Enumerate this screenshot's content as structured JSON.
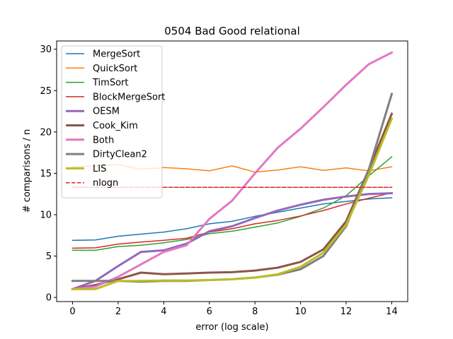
{
  "chart_data": {
    "type": "line",
    "title": "0504 Bad Good relational",
    "xlabel": "error (log scale)",
    "ylabel": "# comparisons / n",
    "xlim": [
      -0.7,
      14.7
    ],
    "ylim": [
      -0.5,
      31.0
    ],
    "xticks": [
      0,
      2,
      4,
      6,
      8,
      10,
      12,
      14
    ],
    "yticks": [
      0,
      5,
      10,
      15,
      20,
      25,
      30
    ],
    "grid": false,
    "legend_position": "top-left",
    "x": [
      0,
      1,
      2,
      3,
      4,
      5,
      6,
      7,
      8,
      9,
      10,
      11,
      12,
      13,
      14
    ],
    "series": [
      {
        "name": "MergeSort",
        "color": "#1f77b4",
        "linewidth": 1.5,
        "dashed": false,
        "values": [
          6.9,
          6.95,
          7.4,
          7.65,
          7.9,
          8.3,
          8.9,
          9.2,
          9.8,
          10.3,
          10.8,
          11.3,
          11.6,
          11.9,
          12.05
        ]
      },
      {
        "name": "QuickSort",
        "color": "#ff7f0e",
        "linewidth": 1.5,
        "dashed": false,
        "values": [
          15.8,
          15.9,
          16.05,
          15.5,
          15.7,
          15.55,
          15.3,
          15.9,
          15.15,
          15.4,
          15.8,
          15.35,
          15.65,
          15.3,
          15.8
        ]
      },
      {
        "name": "TimSort",
        "color": "#2ca02c",
        "linewidth": 1.5,
        "dashed": false,
        "values": [
          5.7,
          5.7,
          6.15,
          6.3,
          6.6,
          7.0,
          7.7,
          8.0,
          8.5,
          9.0,
          9.8,
          10.8,
          12.3,
          14.7,
          17.0
        ]
      },
      {
        "name": "BlockMergeSort",
        "color": "#d62728",
        "linewidth": 1.5,
        "dashed": false,
        "values": [
          5.95,
          6.0,
          6.45,
          6.7,
          6.9,
          7.15,
          7.9,
          8.3,
          8.9,
          9.3,
          9.85,
          10.5,
          11.3,
          12.0,
          12.65
        ]
      },
      {
        "name": "OESM",
        "color": "#9467bd",
        "linewidth": 3,
        "dashed": false,
        "values": [
          1.0,
          2.0,
          3.8,
          5.5,
          5.7,
          6.5,
          8.0,
          8.6,
          9.6,
          10.5,
          11.2,
          11.8,
          12.2,
          12.5,
          12.6
        ]
      },
      {
        "name": "Cook_Kim",
        "color": "#8c564b",
        "linewidth": 3,
        "dashed": false,
        "values": [
          1.0,
          1.5,
          2.2,
          3.0,
          2.8,
          2.9,
          3.0,
          3.05,
          3.25,
          3.6,
          4.3,
          5.8,
          9.2,
          15.5,
          22.2
        ]
      },
      {
        "name": "Both",
        "color": "#e377c2",
        "linewidth": 3,
        "dashed": false,
        "values": [
          1.0,
          1.3,
          2.5,
          4.0,
          5.5,
          6.3,
          9.5,
          11.7,
          15.0,
          18.1,
          20.4,
          23.0,
          25.7,
          28.2,
          29.6
        ]
      },
      {
        "name": "DirtyClean2",
        "color": "#7f7f7f",
        "linewidth": 3,
        "dashed": false,
        "values": [
          2.0,
          2.0,
          2.0,
          1.9,
          2.0,
          2.0,
          2.1,
          2.2,
          2.4,
          2.75,
          3.4,
          5.0,
          8.6,
          15.5,
          24.6
        ]
      },
      {
        "name": "LIS",
        "color": "#bcbd22",
        "linewidth": 3,
        "dashed": false,
        "values": [
          1.0,
          1.0,
          2.0,
          2.0,
          2.05,
          2.05,
          2.1,
          2.2,
          2.4,
          2.8,
          3.7,
          5.4,
          8.8,
          14.8,
          21.6
        ]
      },
      {
        "name": "nlogn",
        "color": "#d62728",
        "linewidth": 1.5,
        "dashed": true,
        "values": [
          13.3,
          13.3,
          13.3,
          13.3,
          13.3,
          13.3,
          13.3,
          13.3,
          13.3,
          13.3,
          13.3,
          13.3,
          13.3,
          13.3,
          13.3
        ]
      }
    ]
  }
}
